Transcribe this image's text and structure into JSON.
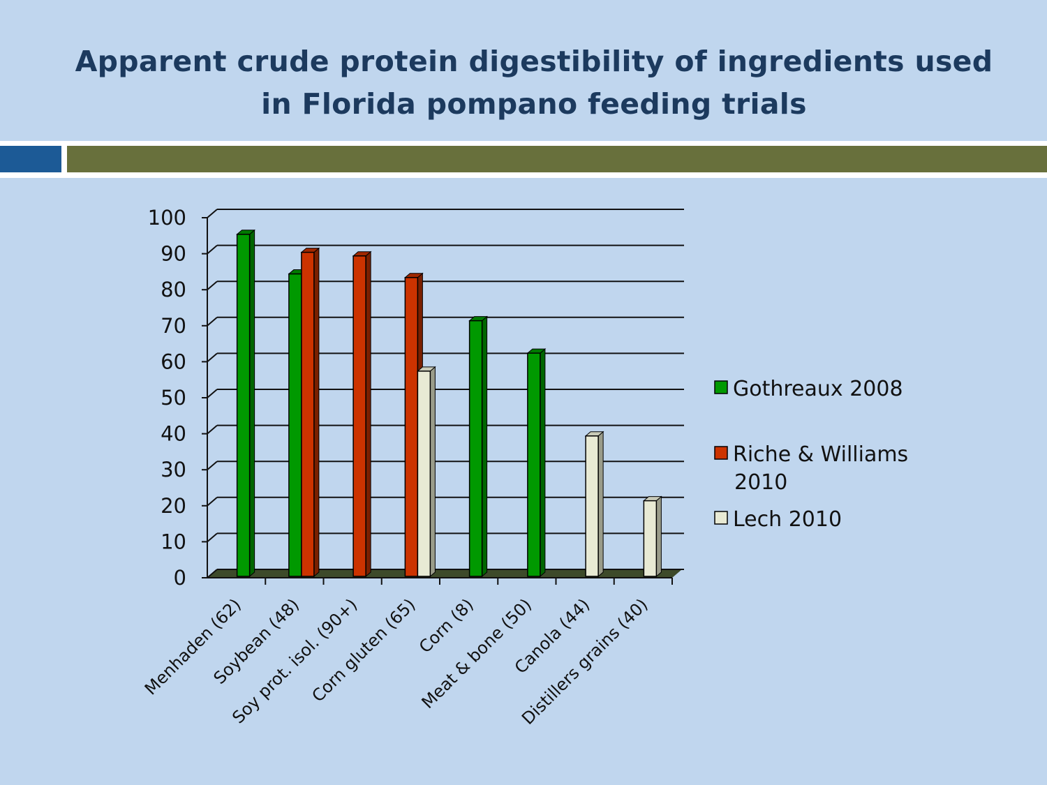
{
  "chart_data": {
    "type": "bar",
    "title": "Apparent crude protein digestibility of ingredients used in Florida pompano feeding trials",
    "categories": [
      "Menhaden (62)",
      "Soybean (48)",
      "Soy prot. isol. (90+)",
      "Corn gluten (65)",
      "Corn (8)",
      "Meat & bone (50)",
      "Canola (44)",
      "Distillers grains (40)"
    ],
    "series": [
      {
        "name": "Gothreaux 2008",
        "color": "#009900",
        "values": [
          95,
          84,
          null,
          null,
          71,
          62,
          null,
          null
        ]
      },
      {
        "name": "Riche & Williams 2010",
        "color": "#cc3300",
        "values": [
          null,
          90,
          89,
          83,
          null,
          null,
          null,
          null
        ]
      },
      {
        "name": "Lech 2010",
        "color": "#e8ead4",
        "values": [
          null,
          null,
          null,
          57,
          null,
          null,
          39,
          21
        ]
      }
    ],
    "ylim": [
      0,
      100
    ],
    "yticks": [
      0,
      10,
      20,
      30,
      40,
      50,
      60,
      70,
      80,
      90,
      100
    ],
    "grid": true,
    "legend": "right"
  }
}
